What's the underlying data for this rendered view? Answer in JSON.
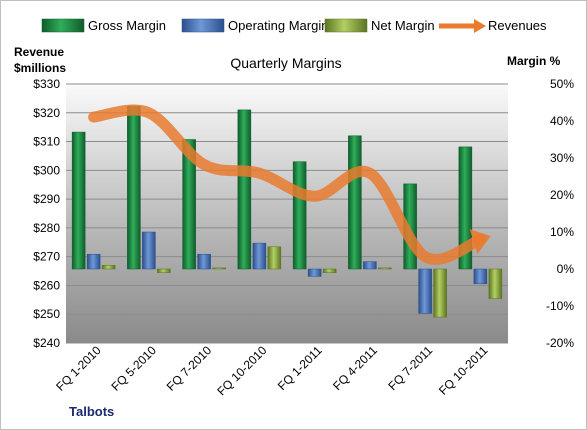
{
  "chart_data": {
    "type": "bar",
    "title": "Quarterly Margins",
    "company": "Talbots",
    "y_left_label": [
      "Revenue",
      "$millions"
    ],
    "y_right_label": "Margin %",
    "y_left": {
      "min": 240,
      "max": 330,
      "step": 10,
      "ticks": [
        "$330",
        "$320",
        "$310",
        "$300",
        "$290",
        "$280",
        "$270",
        "$260",
        "$250",
        "$240"
      ]
    },
    "y_right": {
      "min": -20,
      "max": 50,
      "step": 10,
      "ticks": [
        "50%",
        "40%",
        "30%",
        "20%",
        "10%",
        "0%",
        "-10%",
        "-20%"
      ]
    },
    "categories": [
      "FQ 1-2010",
      "FQ 5-2010",
      "FQ 7-2010",
      "FQ 10-2010",
      "FQ 1-2011",
      "FQ 4-2011",
      "FQ 7-2011",
      "FQ 10-2011"
    ],
    "legend_position": "top",
    "grid": true,
    "series": [
      {
        "name": "Gross Margin",
        "kind": "bar",
        "axis": "right",
        "color": "#1e8a44",
        "values": [
          37,
          44,
          35,
          43,
          29,
          36,
          23,
          33
        ]
      },
      {
        "name": "Operating Margin",
        "kind": "bar",
        "axis": "right",
        "color": "#4472c4",
        "values": [
          4,
          10,
          4,
          7,
          -2,
          2,
          -12,
          -4
        ]
      },
      {
        "name": "Net Margin",
        "kind": "bar",
        "axis": "right",
        "color": "#8fae3c",
        "values": [
          1,
          -1,
          0.3,
          6,
          -1,
          0.3,
          -13,
          -8
        ]
      },
      {
        "name": "Revenues",
        "kind": "line",
        "axis": "left",
        "color": "#e97a2e",
        "values": [
          318.5,
          320,
          302,
          299,
          291,
          299,
          270,
          276
        ]
      }
    ]
  }
}
